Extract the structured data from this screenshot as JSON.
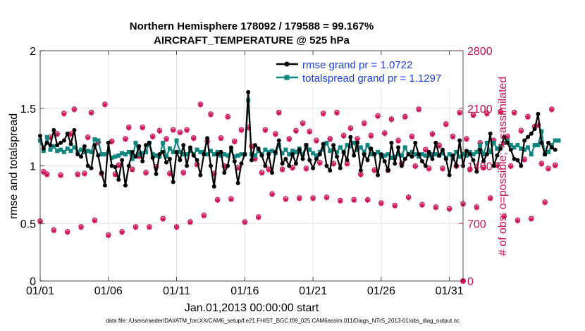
{
  "chart_data": {
    "type": "line",
    "title_line1": "Northern Hemisphere 178092 / 179588 = 99.167%",
    "title_line2": "AIRCRAFT_TEMPERATURE @ 525 hPa",
    "xlabel": "Jan.01,2013 00:00:00 start",
    "ylabel_left": "rmse and totalspread",
    "ylabel_right": "# of obs: o=possible; ∗=assimilated",
    "footer": "data file: /Users/raeder/DAI/ATM_forcXX/CAM6_setup/f.e21.FHIST_BGC.f09_025.CAM6assim.011/Diags_NTrS_2013-01/obs_diag_output.nc",
    "xlim": [
      1,
      32
    ],
    "ylim_left": [
      0,
      2
    ],
    "ylim_right": [
      0,
      2800
    ],
    "x_ticks": [
      1,
      6,
      11,
      16,
      21,
      26,
      31
    ],
    "x_tick_labels": [
      "01/01",
      "01/06",
      "01/11",
      "01/16",
      "01/21",
      "01/26",
      "01/31"
    ],
    "y_left_ticks": [
      0,
      0.5,
      1,
      1.5,
      2
    ],
    "y_left_tick_labels": [
      "0",
      "0.5",
      "1",
      "1.5",
      "2"
    ],
    "y_right_ticks": [
      0,
      700,
      1400,
      2100,
      2800
    ],
    "y_right_tick_labels": [
      "0",
      "700",
      "1400",
      "2100",
      "2800"
    ],
    "colors": {
      "rmse": "#000000",
      "spread": "#10857f",
      "obs": "#d0135a",
      "legend_text": "#1a3fe0"
    },
    "legend": [
      {
        "name": "rmse grand pr = 1.0722",
        "series": "rmse"
      },
      {
        "name": "totalspread grand pr = 1.1297",
        "series": "spread"
      }
    ],
    "x_start": 1,
    "x_step": 0.25,
    "series": [
      {
        "name": "rmse",
        "axis": "left",
        "values": [
          1.26,
          1.15,
          1.2,
          1.18,
          1.31,
          1.18,
          1.2,
          1.22,
          1.28,
          1.19,
          1.31,
          1.1,
          1.08,
          1.17,
          1.0,
          0.98,
          1.18,
          1.09,
          0.94,
          0.83,
          1.2,
          1.0,
          0.99,
          0.88,
          1.05,
          0.83,
          1.0,
          1.12,
          1.08,
          1.17,
          1.04,
          1.18,
          1.2,
          1.07,
          0.93,
          1.1,
          1.12,
          1.03,
          1.06,
          0.86,
          1.12,
          1.05,
          1.18,
          1.0,
          1.16,
          1.09,
          1.05,
          0.92,
          1.1,
          1.24,
          1.0,
          0.82,
          1.1,
          1.12,
          0.94,
          1.0,
          1.16,
          1.04,
          0.85,
          1.02,
          1.1,
          1.64,
          1.05,
          1.18,
          1.15,
          1.09,
          1.0,
          1.1,
          0.94,
          1.12,
          1.22,
          1.02,
          1.06,
          1.0,
          1.1,
          1.02,
          1.14,
          1.06,
          1.18,
          1.05,
          0.98,
          1.06,
          1.1,
          1.19,
          1.0,
          0.96,
          1.18,
          1.08,
          0.98,
          1.12,
          1.05,
          1.25,
          1.09,
          1.2,
          0.96,
          1.1,
          1.05,
          1.15,
          1.1,
          0.92,
          1.1,
          1.04,
          0.96,
          1.2,
          1.02,
          1.16,
          1.0,
          1.06,
          1.1,
          1.08,
          1.2,
          1.1,
          1.04,
          1.0,
          1.12,
          1.06,
          1.2,
          1.09,
          1.14,
          1.06,
          0.92,
          1.09,
          1.0,
          1.22,
          1.0,
          1.13,
          1.1,
          1.05,
          0.95,
          1.14,
          1.04,
          1.1,
          1.28,
          1.0,
          1.09,
          1.15,
          1.25,
          1.2,
          1.14,
          1.06,
          1.05,
          1.0,
          1.22,
          1.25,
          1.28,
          1.32,
          1.45,
          1.2,
          1.1,
          1.2,
          1.16,
          1.14
        ],
        "marker": "filled-dot"
      },
      {
        "name": "totalspread",
        "axis": "left",
        "values": [
          1.22,
          1.13,
          1.25,
          1.14,
          1.17,
          1.13,
          1.14,
          1.12,
          1.15,
          1.13,
          1.16,
          1.12,
          1.14,
          1.12,
          1.13,
          1.12,
          1.23,
          1.22,
          1.1,
          1.1,
          1.12,
          1.07,
          1.08,
          1.09,
          1.11,
          1.1,
          1.12,
          1.06,
          1.2,
          1.1,
          1.11,
          1.12,
          1.2,
          1.1,
          1.09,
          1.08,
          1.2,
          1.08,
          1.15,
          1.12,
          1.22,
          1.12,
          1.1,
          1.1,
          1.13,
          1.1,
          1.14,
          1.12,
          1.12,
          1.1,
          1.13,
          1.1,
          1.12,
          1.09,
          1.1,
          1.09,
          1.13,
          1.08,
          1.09,
          1.1,
          1.1,
          1.57,
          1.1,
          1.09,
          1.13,
          1.1,
          1.14,
          1.12,
          1.13,
          1.11,
          1.18,
          1.11,
          1.14,
          1.1,
          1.13,
          1.12,
          1.15,
          1.1,
          1.18,
          1.14,
          1.11,
          1.09,
          1.12,
          1.14,
          1.2,
          1.13,
          1.14,
          1.12,
          1.16,
          1.12,
          1.18,
          1.17,
          1.2,
          1.14,
          1.16,
          1.12,
          1.18,
          1.1,
          1.1,
          1.12,
          1.08,
          1.09,
          1.1,
          1.07,
          1.08,
          1.1,
          1.09,
          1.16,
          1.1,
          1.12,
          1.1,
          1.08,
          1.1,
          1.09,
          1.09,
          1.1,
          1.1,
          1.09,
          1.11,
          1.07,
          1.1,
          1.06,
          1.12,
          1.08,
          1.1,
          1.09,
          1.12,
          1.1,
          1.12,
          1.18,
          1.1,
          1.2,
          1.12,
          1.2,
          1.15,
          1.17,
          1.2,
          1.22,
          1.18,
          1.16,
          1.18,
          1.15,
          1.14,
          1.16,
          1.1,
          1.18,
          1.18,
          1.3,
          1.1,
          1.12,
          1.18,
          1.22,
          1.22
        ],
        "marker": "filled-square"
      },
      {
        "name": "obs_possible",
        "axis": "right",
        "values": [
          730,
          1330,
          1300,
          1750,
          620,
          1790,
          1290,
          2040,
          600,
          1790,
          2090,
          1300,
          660,
          1310,
          1750,
          2050,
          740,
          1690,
          1310,
          2150,
          560,
          1700,
          1300,
          1410,
          600,
          1730,
          1870,
          1360,
          660,
          1520,
          1870,
          1320,
          660,
          1760,
          1390,
          1830,
          760,
          1730,
          1310,
          1840,
          660,
          1810,
          1320,
          1840,
          720,
          1740,
          1420,
          2150,
          800,
          1700,
          2030,
          1310,
          990,
          1740,
          1400,
          2000,
          1000,
          1700,
          1380,
          1840,
          720,
          1870,
          1640,
          1490,
          780,
          1320,
          1840,
          1360,
          1060,
          1790,
          2050,
          1360,
          1000,
          1730,
          1380,
          1830,
          1010,
          1920,
          1370,
          1820,
          1010,
          1710,
          1440,
          2040,
          1020,
          1730,
          1430,
          2050,
          980,
          1770,
          1430,
          1860,
          990,
          1730,
          1300,
          1920,
          990,
          1770,
          1350,
          2010,
          950,
          1800,
          1350,
          1970,
          920,
          1710,
          1430,
          2000,
          1020,
          1760,
          1400,
          2090,
          930,
          1600,
          1370,
          1790,
          900,
          1650,
          1370,
          1910,
          880,
          1760,
          1400,
          2050,
          940,
          1730,
          1360,
          2020,
          900,
          1680,
          1380,
          2040,
          1010,
          1710,
          1410,
          2060,
          790,
          1760,
          1400,
          2050,
          740,
          1830,
          1480,
          2000,
          760,
          1880,
          1900,
          1430,
          960,
          1370,
          2090,
          1410
        ],
        "marker": "open-circle"
      },
      {
        "name": "obs_assimilated",
        "axis": "right",
        "values": [
          720,
          1320,
          1290,
          1740,
          610,
          1780,
          1280,
          2030,
          590,
          1780,
          2080,
          1290,
          650,
          1300,
          1740,
          2040,
          730,
          1680,
          1300,
          2140,
          550,
          1690,
          1290,
          1400,
          590,
          1720,
          1860,
          1350,
          650,
          1510,
          1860,
          1310,
          650,
          1750,
          1380,
          1820,
          750,
          1720,
          1300,
          1830,
          650,
          1800,
          1310,
          1830,
          710,
          1730,
          1410,
          2140,
          790,
          1690,
          2020,
          1300,
          980,
          1730,
          1390,
          1990,
          990,
          1690,
          1370,
          1830,
          710,
          1860,
          1630,
          1480,
          770,
          1310,
          1830,
          1350,
          1050,
          1780,
          2040,
          1350,
          990,
          1720,
          1370,
          1820,
          1000,
          1910,
          1360,
          1810,
          1000,
          1700,
          1430,
          2030,
          1010,
          1720,
          1420,
          2040,
          970,
          1760,
          1420,
          1850,
          980,
          1720,
          1290,
          1910,
          980,
          1760,
          1340,
          2000,
          940,
          1790,
          1340,
          1960,
          910,
          1700,
          1420,
          1990,
          1010,
          1750,
          1390,
          2080,
          920,
          1590,
          1360,
          1780,
          890,
          1640,
          1360,
          1900,
          870,
          1750,
          1390,
          2040,
          930,
          1720,
          1350,
          2010,
          890,
          1670,
          1370,
          2030,
          1000,
          1700,
          1400,
          2050,
          780,
          1750,
          1390,
          2040,
          730,
          1820,
          1470,
          1990,
          750,
          1870,
          1890,
          1420,
          950,
          1360,
          2080,
          1400
        ],
        "marker": "asterisk"
      }
    ],
    "final_zero_point": {
      "x": 32,
      "value": 0,
      "axis": "right"
    }
  }
}
